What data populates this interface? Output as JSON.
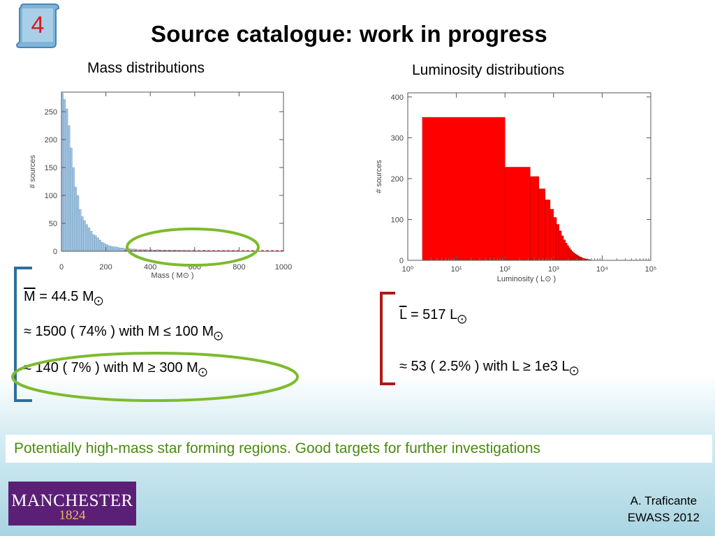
{
  "slide": {
    "number": "4",
    "title": "Source catalogue: work in progress"
  },
  "mass_panel": {
    "subheading": "Mass distributions",
    "stats": {
      "mean_prefix": "M",
      "mean_value": " = 44.5 M",
      "line2": "≈ 1500 ( 74% ) with M ≤ 100 M",
      "line3": "≈ 140 ( 7% )  with  M ≥ 300 M"
    }
  },
  "lum_panel": {
    "subheading": "Luminosity distributions",
    "stats": {
      "mean_prefix": "L",
      "mean_value": " = 517 L",
      "line2": "≈ 53 ( 2.5% )  with  L ≥ 1e3 L"
    }
  },
  "sun_symbol": "⨀",
  "banner": "Potentially high-mass star forming regions. Good targets for further investigations",
  "logo": {
    "main": "MANCHESTER",
    "year": "1824"
  },
  "credit": {
    "name": "A. Traficante",
    "event": "EWASS 2012"
  },
  "colors": {
    "mass_bar": "#9fc3e0",
    "lum_bar": "#ff0000",
    "highlight": "#7dbb2e",
    "banner_text": "#4a8a10",
    "mass_bracket": "#2f6f9a",
    "lum_bracket": "#b01818"
  },
  "chart_data": [
    {
      "type": "bar",
      "title": "",
      "xlabel": "Mass ( M⊙ )",
      "ylabel": "# sources",
      "xlim": [
        0,
        1000
      ],
      "ylim": [
        0,
        285
      ],
      "xticks": [
        "0",
        "200",
        "400",
        "600",
        "800",
        "1000"
      ],
      "yticks": [
        "0",
        "50",
        "100",
        "150",
        "200",
        "250"
      ],
      "bin_width": 10,
      "bin_starts": [
        0,
        10,
        20,
        30,
        40,
        50,
        60,
        70,
        80,
        90,
        100,
        110,
        120,
        130,
        140,
        150,
        160,
        170,
        180,
        190,
        200,
        210,
        220,
        230,
        240,
        250,
        260,
        270,
        280,
        290,
        300,
        310,
        320,
        330,
        340,
        350,
        360,
        370,
        380,
        390,
        400,
        410,
        420,
        430,
        440,
        450,
        460,
        470,
        480,
        490,
        500,
        510,
        520,
        530,
        540,
        550,
        560,
        570,
        580,
        590,
        600,
        610,
        620,
        630,
        640,
        650,
        660,
        670,
        680,
        690,
        700,
        710,
        720,
        730,
        740,
        750,
        760,
        770,
        780,
        790
      ],
      "values": [
        283,
        272,
        255,
        225,
        185,
        150,
        115,
        100,
        75,
        62,
        55,
        48,
        42,
        36,
        30,
        28,
        24,
        20,
        16,
        14,
        12,
        10,
        9,
        8,
        8,
        7,
        6,
        6,
        5,
        5,
        5,
        4,
        4,
        4,
        3,
        3,
        3,
        3,
        3,
        2,
        3,
        2,
        2,
        3,
        2,
        2,
        2,
        2,
        2,
        2,
        2,
        2,
        2,
        1,
        2,
        1,
        2,
        1,
        1,
        2,
        1,
        1,
        1,
        1,
        2,
        1,
        1,
        1,
        1,
        1,
        1,
        1,
        1,
        1,
        1,
        1,
        1,
        1,
        1,
        1
      ]
    },
    {
      "type": "bar",
      "title": "",
      "xlabel": "Luminosity ( L⊙ )",
      "ylabel": "# sources",
      "xscale": "log",
      "xlim": [
        1,
        100000
      ],
      "ylim": [
        0,
        410
      ],
      "xticks": [
        "10⁰",
        "10¹",
        "10²",
        "10³",
        "10⁴",
        "10⁵"
      ],
      "yticks": [
        "0",
        "100",
        "200",
        "300",
        "400"
      ],
      "bin_edges": [
        2,
        100,
        330,
        500,
        670,
        850,
        1000,
        1150,
        1300,
        1450,
        1600,
        1750,
        1900,
        2050,
        2200,
        2350,
        2500,
        2650,
        2800,
        2950,
        3100,
        3250,
        3400,
        3550,
        3700,
        3850,
        4000,
        4300,
        4600,
        5000,
        5500,
        6000
      ],
      "values": [
        350,
        228,
        205,
        175,
        148,
        125,
        105,
        88,
        72,
        60,
        50,
        42,
        36,
        31,
        26,
        22,
        19,
        17,
        15,
        13,
        12,
        10,
        9,
        8,
        7,
        6,
        5,
        4,
        3,
        2,
        1
      ]
    }
  ]
}
